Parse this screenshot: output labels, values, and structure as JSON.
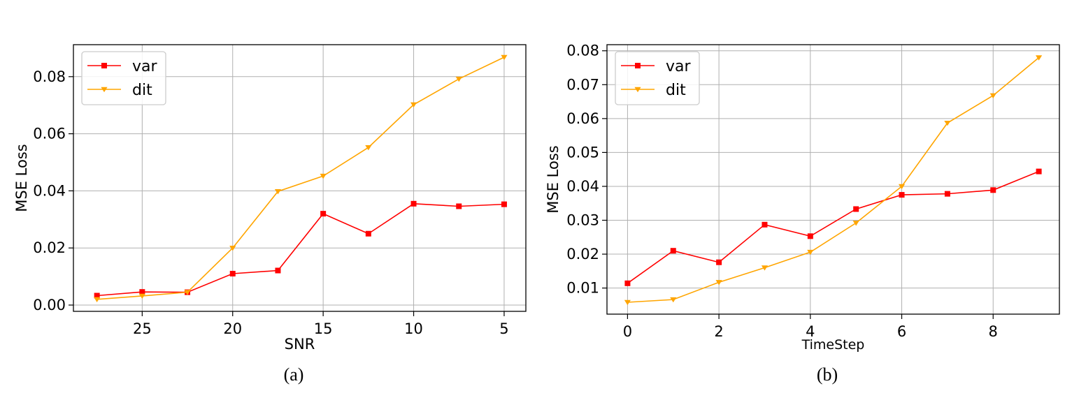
{
  "chart_data": [
    {
      "type": "line",
      "caption": "(a)",
      "xlabel": "SNR",
      "ylabel": "MSE Loss",
      "x": [
        27.5,
        25,
        22.5,
        20,
        17.5,
        15,
        12.5,
        10,
        7.5,
        5
      ],
      "xlim": [
        28.8,
        3.8
      ],
      "x_reversed": true,
      "xticks": [
        25,
        20,
        15,
        10,
        5
      ],
      "ylim": [
        -0.0022,
        0.0912
      ],
      "yticks": [
        0.0,
        0.02,
        0.04,
        0.06,
        0.08
      ],
      "ytick_labels": [
        "0.00",
        "0.02",
        "0.04",
        "0.06",
        "0.08"
      ],
      "grid": true,
      "legend_position": "top-left",
      "series": [
        {
          "name": "var",
          "color": "#ff0000",
          "marker": "square",
          "values": [
            0.0033,
            0.0046,
            0.0045,
            0.011,
            0.0121,
            0.032,
            0.025,
            0.0355,
            0.0346,
            0.0353
          ]
        },
        {
          "name": "dit",
          "color": "#ffa500",
          "marker": "triangle-down",
          "values": [
            0.002,
            0.0032,
            0.0045,
            0.02,
            0.0398,
            0.0452,
            0.0552,
            0.0702,
            0.0792,
            0.0868
          ]
        }
      ]
    },
    {
      "type": "line",
      "caption": "(b)",
      "xlabel": "TimeStep",
      "ylabel": "MSE Loss",
      "x": [
        0,
        1,
        2,
        3,
        4,
        5,
        6,
        7,
        8,
        9
      ],
      "xlim": [
        -0.45,
        9.45
      ],
      "x_reversed": false,
      "xticks": [
        0,
        2,
        4,
        6,
        8
      ],
      "ylim": [
        0.0023,
        0.0818
      ],
      "yticks": [
        0.01,
        0.02,
        0.03,
        0.04,
        0.05,
        0.06,
        0.07,
        0.08
      ],
      "ytick_labels": [
        "0.01",
        "0.02",
        "0.03",
        "0.04",
        "0.05",
        "0.06",
        "0.07",
        "0.08"
      ],
      "grid": true,
      "legend_position": "top-left",
      "series": [
        {
          "name": "var",
          "color": "#ff0000",
          "marker": "square",
          "values": [
            0.0114,
            0.021,
            0.0176,
            0.0287,
            0.0253,
            0.0333,
            0.0375,
            0.0378,
            0.0389,
            0.0444
          ]
        },
        {
          "name": "dit",
          "color": "#ffa500",
          "marker": "triangle-down",
          "values": [
            0.0058,
            0.0066,
            0.0117,
            0.016,
            0.0206,
            0.0292,
            0.04,
            0.0587,
            0.0668,
            0.078
          ]
        }
      ]
    }
  ]
}
